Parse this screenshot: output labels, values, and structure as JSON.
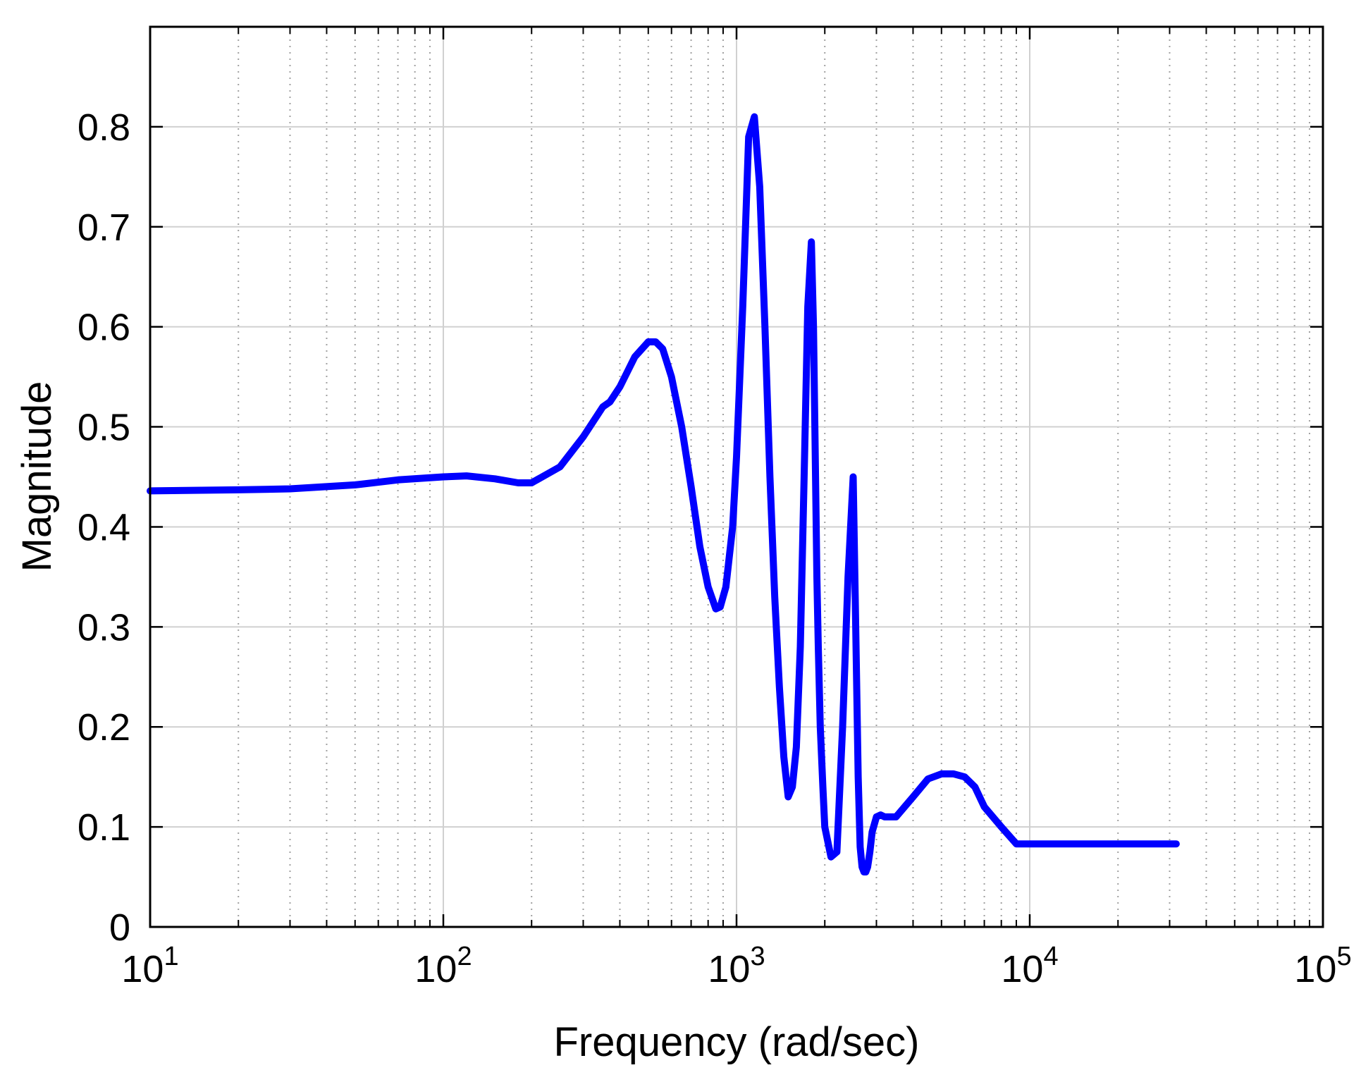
{
  "chart_data": {
    "type": "line",
    "title": "",
    "xlabel": "Frequency (rad/sec)",
    "ylabel": "Magnitude",
    "xscale": "log",
    "xlim": [
      10,
      100000
    ],
    "ylim": [
      0,
      0.9
    ],
    "grid": true,
    "x_ticks": [
      {
        "value": 10,
        "base": "10",
        "exp": "1"
      },
      {
        "value": 100,
        "base": "10",
        "exp": "2"
      },
      {
        "value": 1000,
        "base": "10",
        "exp": "3"
      },
      {
        "value": 10000,
        "base": "10",
        "exp": "4"
      },
      {
        "value": 100000,
        "base": "10",
        "exp": "5"
      }
    ],
    "y_ticks": [
      {
        "value": 0,
        "label": "0"
      },
      {
        "value": 0.1,
        "label": "0.1"
      },
      {
        "value": 0.2,
        "label": "0.2"
      },
      {
        "value": 0.3,
        "label": "0.3"
      },
      {
        "value": 0.4,
        "label": "0.4"
      },
      {
        "value": 0.5,
        "label": "0.5"
      },
      {
        "value": 0.6,
        "label": "0.6"
      },
      {
        "value": 0.7,
        "label": "0.7"
      },
      {
        "value": 0.8,
        "label": "0.8"
      }
    ],
    "series": [
      {
        "color": "#0000ff",
        "x": [
          10,
          20,
          30,
          50,
          70,
          100,
          120,
          150,
          180,
          200,
          250,
          300,
          350,
          370,
          400,
          450,
          500,
          530,
          560,
          600,
          650,
          700,
          750,
          800,
          850,
          880,
          920,
          970,
          1000,
          1050,
          1100,
          1150,
          1200,
          1250,
          1300,
          1350,
          1400,
          1450,
          1500,
          1550,
          1600,
          1650,
          1700,
          1750,
          1800,
          1830,
          1860,
          1880,
          1900,
          1930,
          1970,
          2000,
          2100,
          2200,
          2300,
          2400,
          2500,
          2550,
          2600,
          2640,
          2680,
          2720,
          2760,
          2800,
          2850,
          2900,
          3000,
          3100,
          3200,
          3500,
          4000,
          4500,
          5000,
          5500,
          6000,
          6500,
          7000,
          8000,
          9000,
          10000,
          12000,
          15000,
          20000,
          25000,
          31600
        ],
        "y": [
          0.436,
          0.437,
          0.438,
          0.442,
          0.447,
          0.45,
          0.451,
          0.448,
          0.444,
          0.444,
          0.46,
          0.49,
          0.52,
          0.525,
          0.54,
          0.57,
          0.585,
          0.585,
          0.578,
          0.55,
          0.5,
          0.44,
          0.38,
          0.34,
          0.318,
          0.32,
          0.34,
          0.4,
          0.47,
          0.62,
          0.79,
          0.81,
          0.74,
          0.6,
          0.45,
          0.33,
          0.24,
          0.17,
          0.13,
          0.14,
          0.18,
          0.28,
          0.45,
          0.62,
          0.685,
          0.6,
          0.45,
          0.35,
          0.28,
          0.2,
          0.14,
          0.1,
          0.07,
          0.075,
          0.2,
          0.35,
          0.45,
          0.3,
          0.15,
          0.08,
          0.06,
          0.055,
          0.055,
          0.06,
          0.075,
          0.095,
          0.11,
          0.112,
          0.11,
          0.11,
          0.13,
          0.148,
          0.153,
          0.153,
          0.15,
          0.14,
          0.12,
          0.1,
          0.083,
          0.083,
          0.083,
          0.083,
          0.083,
          0.083,
          0.083
        ]
      }
    ]
  }
}
